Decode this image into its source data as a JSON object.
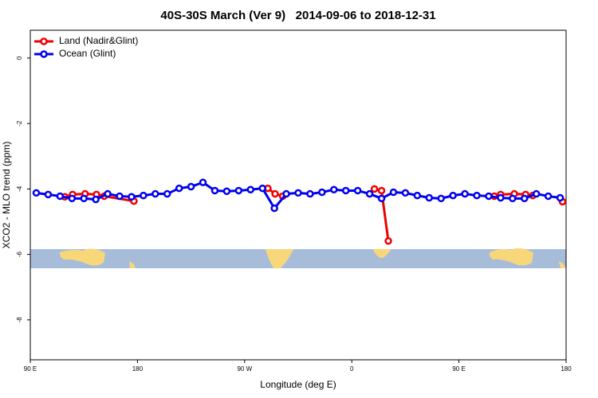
{
  "chart_data": {
    "type": "line",
    "title": "40S-30S March (Ver 9)   2014-09-06 to 2018-12-31",
    "x_label": "Longitude (deg E)",
    "y_label": "XCO2 - MLO trend (ppm)",
    "xlim": [
      90,
      540
    ],
    "ylim": [
      -9.22,
      0.85
    ],
    "xticks": [
      {
        "value": 90,
        "label": "90 E"
      },
      180,
      {
        "value": 270,
        "label": "90 W"
      },
      {
        "value": 360,
        "label": "0"
      },
      {
        "value": 450,
        "label": "90 E"
      },
      {
        "value": 540,
        "label": "180"
      }
    ],
    "yticks": [
      0,
      -2,
      -4,
      -6,
      -8
    ],
    "legend": "top-left",
    "series": [
      {
        "name": "Land (Nadir&Glint)",
        "color": "#ee0000",
        "x": [
          119,
          125.5,
          136,
          145.6,
          152,
          177,
          null,
          289.5,
          295.6,
          302,
          null,
          379,
          385,
          390.7,
          null,
          479.7,
          485,
          496.5,
          506,
          512,
          null,
          537
        ],
        "values": [
          -4.24,
          -4.17,
          -4.15,
          -4.17,
          -4.22,
          -4.37,
          null,
          -3.98,
          -4.15,
          -4.22,
          null,
          -4.0,
          -4.05,
          -5.59,
          null,
          -4.22,
          -4.17,
          -4.15,
          -4.17,
          -4.2,
          null,
          -4.39
        ]
      },
      {
        "name": "Ocean (Glint)",
        "color": "#0000ee",
        "x": [
          95,
          105,
          115,
          125,
          135,
          145,
          155,
          165,
          175,
          185,
          195,
          205,
          215,
          225,
          235,
          245,
          255,
          265,
          275,
          285,
          295,
          305,
          315,
          325,
          335,
          345,
          355,
          365,
          375,
          385,
          395,
          405,
          415,
          425,
          435,
          445,
          455,
          465,
          475,
          485,
          495,
          505,
          515,
          525,
          535
        ],
        "values": [
          -4.12,
          -4.17,
          -4.22,
          -4.29,
          -4.29,
          -4.32,
          -4.15,
          -4.22,
          -4.24,
          -4.2,
          -4.15,
          -4.15,
          -3.98,
          -3.93,
          -3.8,
          -4.05,
          -4.07,
          -4.05,
          -4.02,
          -3.98,
          -4.59,
          -4.15,
          -4.12,
          -4.15,
          -4.1,
          -4.02,
          -4.05,
          -4.05,
          -4.15,
          -4.29,
          -4.1,
          -4.12,
          -4.2,
          -4.27,
          -4.29,
          -4.2,
          -4.15,
          -4.2,
          -4.22,
          -4.27,
          -4.29,
          -4.29,
          -4.15,
          -4.22,
          -4.27
        ]
      }
    ]
  }
}
